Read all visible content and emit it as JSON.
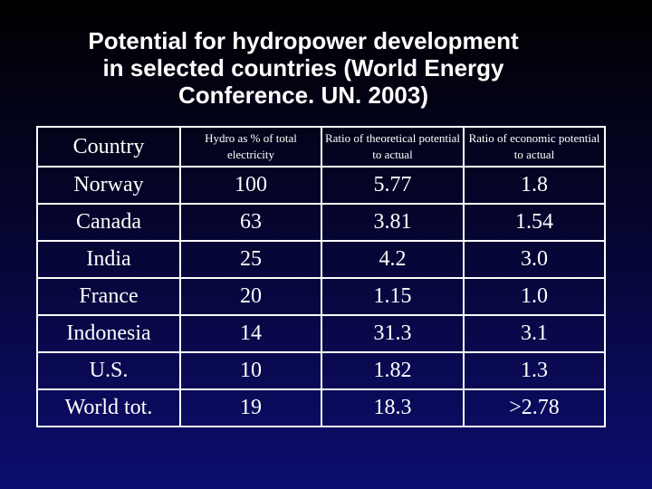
{
  "slide": {
    "title_lines": [
      "Potential for hydropower development",
      "in selected countries (World Energy",
      "Conference. UN. 2003)"
    ]
  },
  "table": {
    "columns": [
      "Country",
      "Hydro as % of total electricity",
      "Ratio of theoretical potential to actual",
      "Ratio of economic potential to actual"
    ],
    "rows": [
      {
        "country": "Norway",
        "hydro_pct": "100",
        "theoretical_ratio": "5.77",
        "economic_ratio": "1.8"
      },
      {
        "country": "Canada",
        "hydro_pct": "63",
        "theoretical_ratio": "3.81",
        "economic_ratio": "1.54"
      },
      {
        "country": "India",
        "hydro_pct": "25",
        "theoretical_ratio": "4.2",
        "economic_ratio": "3.0"
      },
      {
        "country": "France",
        "hydro_pct": "20",
        "theoretical_ratio": "1.15",
        "economic_ratio": "1.0"
      },
      {
        "country": "Indonesia",
        "hydro_pct": "14",
        "theoretical_ratio": "31.3",
        "economic_ratio": "3.1"
      },
      {
        "country": "U.S.",
        "hydro_pct": "10",
        "theoretical_ratio": "1.82",
        "economic_ratio": "1.3"
      },
      {
        "country": "World tot.",
        "hydro_pct": "19",
        "theoretical_ratio": "18.3",
        "economic_ratio": ">2.78"
      }
    ]
  }
}
